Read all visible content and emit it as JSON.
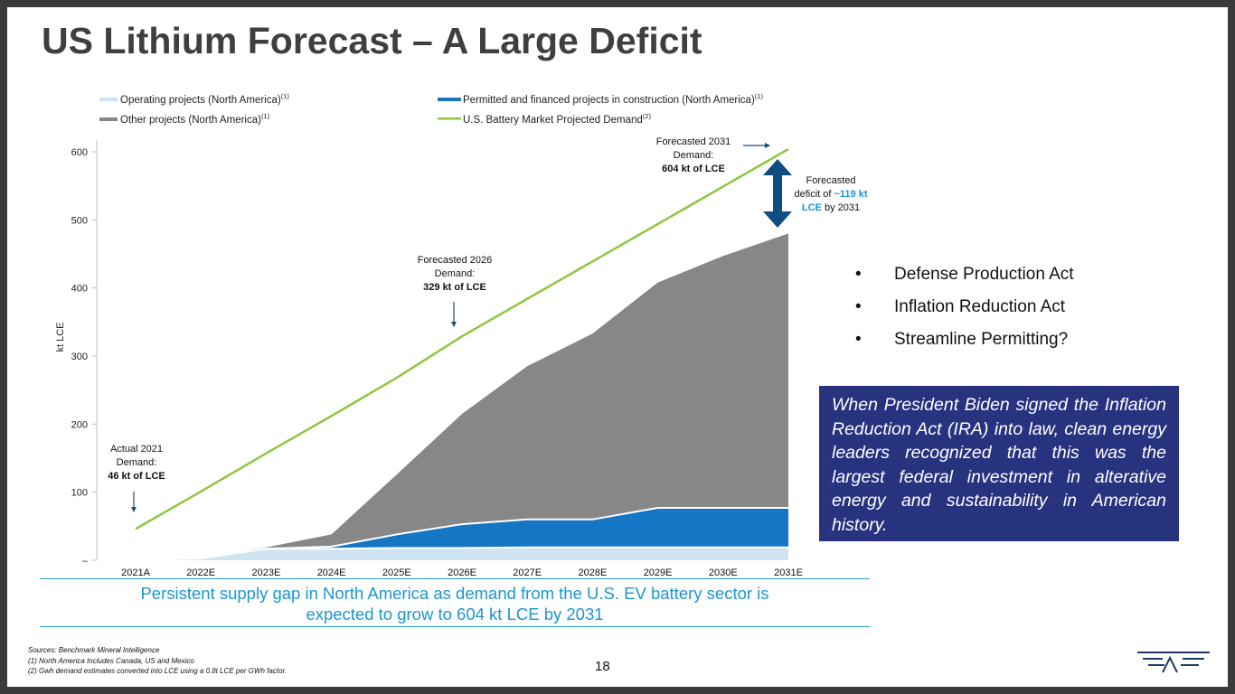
{
  "title": "US Lithium Forecast – A Large Deficit",
  "legend": {
    "operating": "Operating projects (North America)",
    "operating_sup": "(1)",
    "other": "Other projects (North America)",
    "other_sup": "(1)",
    "permitted": "Permitted and financed projects in construction (North America)",
    "permitted_sup": "(1)",
    "demand": "U.S. Battery Market Projected Demand",
    "demand_sup": "(2)"
  },
  "chart_data": {
    "type": "area",
    "ylabel": "kt LCE",
    "ylim": [
      0,
      600
    ],
    "yticks": [
      0,
      100,
      200,
      300,
      400,
      500,
      600
    ],
    "ytick_labels": [
      "–",
      "100",
      "200",
      "300",
      "400",
      "500",
      "600"
    ],
    "categories": [
      "2021A",
      "2022E",
      "2023E",
      "2024E",
      "2025E",
      "2026E",
      "2027E",
      "2028E",
      "2029E",
      "2030E",
      "2031E"
    ],
    "series": [
      {
        "name": "Operating projects (North America)",
        "kind": "stacked-area",
        "color": "#cfe4f2",
        "values": [
          0,
          3,
          17,
          17,
          18,
          18,
          19,
          19,
          19,
          19,
          19
        ]
      },
      {
        "name": "Permitted and financed projects in construction (North America)",
        "kind": "stacked-area",
        "color": "#1576c4",
        "values": [
          0,
          0,
          0,
          3,
          20,
          35,
          41,
          41,
          58,
          58,
          58
        ]
      },
      {
        "name": "Other projects (North America)",
        "kind": "stacked-area",
        "color": "#878787",
        "values": [
          0,
          0,
          2,
          18,
          88,
          162,
          225,
          273,
          331,
          370,
          403
        ]
      },
      {
        "name": "U.S. Battery Market Projected Demand",
        "kind": "line",
        "color": "#8dc63f",
        "values": [
          46,
          101,
          157,
          212,
          268,
          329,
          384,
          439,
          494,
          549,
          604
        ]
      }
    ],
    "annotations": [
      {
        "l1": "Actual 2021",
        "l2": "Demand:",
        "l3": "46 kt of LCE"
      },
      {
        "l1": "Forecasted 2026",
        "l2": "Demand:",
        "l3": "329 kt of LCE"
      },
      {
        "l1": "Forecasted 2031",
        "l2": "Demand:",
        "l3": "604 kt of LCE"
      }
    ],
    "deficit": {
      "l1": "Forecasted",
      "l2a": "deficit of ",
      "l2b": "~119 kt",
      "l3a": "LCE",
      "l3b": " by 2031",
      "value": 119
    }
  },
  "bullets": [
    "Defense Production Act",
    "Inflation Reduction Act",
    "Streamline Permitting?"
  ],
  "bullet_glyph": "•",
  "quote": "When President Biden signed the Inflation Reduction Act (IRA) into law, clean energy leaders recognized that this was the largest federal investment in alterative energy and sustainability in American history.",
  "takeaway": {
    "line1": "Persistent supply gap in North America as demand from the U.S. EV battery sector is",
    "line2": "expected to grow to 604 kt LCE by 2031"
  },
  "sources": [
    "Sources: Benchmark Mineral Intelligence",
    "(1) North America Includes Canada, US and Mexico",
    "(2) Gwh demand estimates converted into LCE using a 0.8t LCE per GWh factor."
  ],
  "page_number": "18",
  "colors": {
    "accent_blue": "#1c95d1",
    "navy": "#283380",
    "arrow_navy": "#0f4c81"
  }
}
